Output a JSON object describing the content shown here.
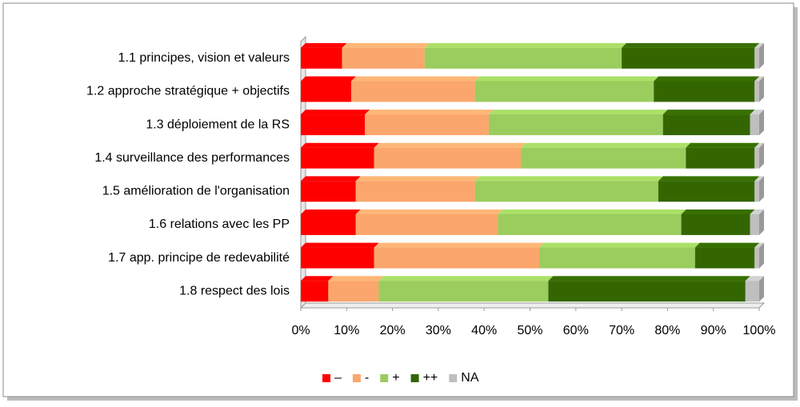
{
  "chart_data": {
    "type": "bar",
    "orientation": "horizontal",
    "stacked": true,
    "categories": [
      "1.1 principes, vision et valeurs",
      "1.2 approche stratégique + objectifs",
      "1.3 déploiement de la RS",
      "1.4 surveillance des performances",
      "1.5 amélioration de l'organisation",
      "1.6 relations avec les PP",
      "1.7 app. principe de redevabilité",
      "1.8 respect des lois"
    ],
    "series": [
      {
        "name": "–",
        "color": "#ff0000",
        "values": [
          9,
          11,
          14,
          16,
          12,
          12,
          16,
          6
        ]
      },
      {
        "name": "-",
        "color": "#fba66c",
        "values": [
          18,
          27,
          27,
          32,
          26,
          31,
          36,
          11
        ]
      },
      {
        "name": "+",
        "color": "#9bcc5e",
        "values": [
          43,
          39,
          38,
          36,
          40,
          40,
          34,
          37
        ]
      },
      {
        "name": "++",
        "color": "#336600",
        "values": [
          29,
          22,
          19,
          15,
          21,
          15,
          13,
          43
        ]
      },
      {
        "name": "NA",
        "color": "#bfbfbf",
        "values": [
          1,
          1,
          2,
          1,
          1,
          2,
          1,
          3
        ]
      }
    ],
    "xlim": [
      0,
      100
    ],
    "xticks": [
      {
        "value": 0,
        "label": "0%"
      },
      {
        "value": 10,
        "label": "10%"
      },
      {
        "value": 20,
        "label": "20%"
      },
      {
        "value": 30,
        "label": "30%"
      },
      {
        "value": 40,
        "label": "40%"
      },
      {
        "value": 50,
        "label": "50%"
      },
      {
        "value": 60,
        "label": "60%"
      },
      {
        "value": 70,
        "label": "70%"
      },
      {
        "value": 80,
        "label": "80%"
      },
      {
        "value": 90,
        "label": "90%"
      },
      {
        "value": 100,
        "label": "100%"
      }
    ],
    "legend": "bottom"
  }
}
